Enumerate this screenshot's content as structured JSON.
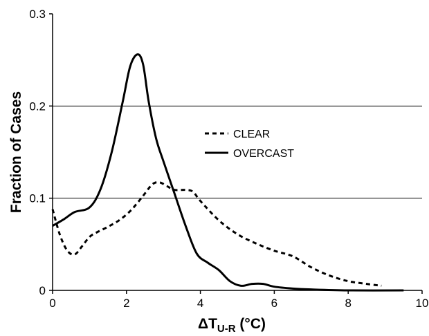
{
  "chart_data": {
    "type": "line",
    "title": "",
    "xlabel": "ΔT",
    "xlabel_sub": "U-R",
    "xlabel_unit": " (°C)",
    "ylabel": "Fraction of Cases",
    "xlim": [
      0,
      10
    ],
    "ylim": [
      0,
      0.3
    ],
    "xticks": [
      0,
      2,
      4,
      6,
      8,
      10
    ],
    "xtick_labels": [
      "0",
      "2",
      "4",
      "6",
      "8",
      "10"
    ],
    "yticks": [
      0,
      0.1,
      0.2,
      0.3
    ],
    "ytick_labels": [
      "0",
      "0.1",
      "0.2",
      "0.3"
    ],
    "grid": "horizontal",
    "legend_placement": "center-right",
    "series": [
      {
        "name": "CLEAR",
        "style": "dashed",
        "color": "#000000",
        "x": [
          0,
          0.2,
          0.4,
          0.6,
          0.8,
          1.0,
          1.2,
          1.5,
          1.8,
          2.1,
          2.4,
          2.7,
          2.9,
          3.1,
          3.3,
          3.6,
          3.8,
          4.0,
          4.5,
          5.0,
          5.5,
          6.0,
          6.5,
          7.0,
          7.5,
          8.0,
          8.5,
          8.9
        ],
        "y": [
          0.088,
          0.06,
          0.043,
          0.039,
          0.048,
          0.058,
          0.063,
          0.069,
          0.076,
          0.086,
          0.1,
          0.115,
          0.117,
          0.113,
          0.109,
          0.109,
          0.107,
          0.097,
          0.076,
          0.061,
          0.051,
          0.043,
          0.037,
          0.025,
          0.016,
          0.01,
          0.007,
          0.005
        ]
      },
      {
        "name": "OVERCAST",
        "style": "solid",
        "color": "#000000",
        "x": [
          0,
          0.3,
          0.6,
          1.0,
          1.3,
          1.6,
          1.9,
          2.1,
          2.3,
          2.45,
          2.6,
          2.8,
          3.0,
          3.3,
          3.6,
          3.9,
          4.2,
          4.5,
          4.8,
          5.1,
          5.4,
          5.7,
          6.0,
          6.5,
          7.0,
          8.0,
          9.5
        ],
        "y": [
          0.07,
          0.077,
          0.085,
          0.09,
          0.11,
          0.15,
          0.205,
          0.243,
          0.256,
          0.245,
          0.205,
          0.165,
          0.14,
          0.105,
          0.07,
          0.04,
          0.03,
          0.022,
          0.01,
          0.005,
          0.007,
          0.007,
          0.004,
          0.002,
          0.001,
          0.0,
          0.0
        ]
      }
    ]
  }
}
